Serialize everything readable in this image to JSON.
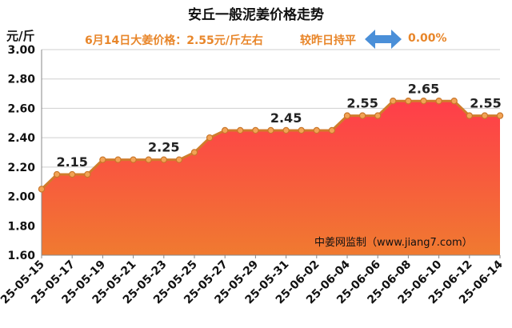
{
  "title": "安丘一般泥姜价格走势",
  "unit": "元/斤",
  "info": {
    "price_text": "6月14日大姜价格：2.55元/斤左右",
    "compare_label": "较昨日持平",
    "change": "0.00%",
    "arrow_icon": "double-arrow-icon"
  },
  "watermark": "中姜网监制（www.jiang7.com）",
  "colors": {
    "accent": "#e8862a",
    "arrow": "#4a8fd8",
    "fill_top": "#ff3d4a",
    "fill_bottom": "#f07a30",
    "line": "#d07c2c",
    "point": "#f2a355"
  },
  "chart_data": {
    "type": "area",
    "title": "安丘一般泥姜价格走势",
    "ylabel": "元/斤",
    "ylim": [
      1.6,
      3.0
    ],
    "yticks": [
      "1.60",
      "1.80",
      "2.00",
      "2.20",
      "2.40",
      "2.60",
      "2.80",
      "3.00"
    ],
    "grid": true,
    "x": [
      "25-05-15",
      "25-05-16",
      "25-05-17",
      "25-05-18",
      "25-05-19",
      "25-05-20",
      "25-05-21",
      "25-05-22",
      "25-05-23",
      "25-05-24",
      "25-05-25",
      "25-05-26",
      "25-05-27",
      "25-05-28",
      "25-05-29",
      "25-05-30",
      "25-05-31",
      "25-06-01",
      "25-06-02",
      "25-06-03",
      "25-06-04",
      "25-06-05",
      "25-06-06",
      "25-06-07",
      "25-06-08",
      "25-06-09",
      "25-06-10",
      "25-06-11",
      "25-06-12",
      "25-06-13",
      "25-06-14"
    ],
    "xticks": [
      "25-05-15",
      "25-05-17",
      "25-05-19",
      "25-05-21",
      "25-05-23",
      "25-05-25",
      "25-05-27",
      "25-05-29",
      "25-05-31",
      "25-06-02",
      "25-06-04",
      "25-06-06",
      "25-06-08",
      "25-06-10",
      "25-06-12",
      "25-06-14"
    ],
    "values": [
      2.05,
      2.15,
      2.15,
      2.15,
      2.25,
      2.25,
      2.25,
      2.25,
      2.25,
      2.25,
      2.3,
      2.4,
      2.45,
      2.45,
      2.45,
      2.45,
      2.45,
      2.45,
      2.45,
      2.45,
      2.55,
      2.55,
      2.55,
      2.65,
      2.65,
      2.65,
      2.65,
      2.65,
      2.55,
      2.55,
      2.55
    ],
    "data_labels": [
      {
        "index": 2,
        "text": "2.15"
      },
      {
        "index": 8,
        "text": "2.25"
      },
      {
        "index": 16,
        "text": "2.45"
      },
      {
        "index": 21,
        "text": "2.55"
      },
      {
        "index": 25,
        "text": "2.65"
      },
      {
        "index": 30,
        "text": "2.55"
      }
    ]
  }
}
